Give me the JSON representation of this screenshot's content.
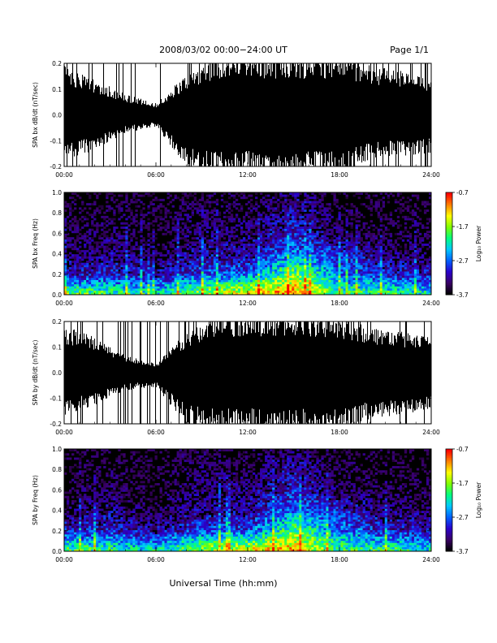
{
  "header": {
    "title": "2008/03/02  00:00−24:00 UT",
    "page": "Page 1/1"
  },
  "footer": {
    "xlabel": "Universal Time (hh:mm)"
  },
  "colorbar": {
    "label": "Log₁₀ Power",
    "ticks": [
      "-0.7",
      "-1.7",
      "-2.7",
      "-3.7"
    ],
    "range": [
      -3.7,
      -0.7
    ],
    "colors": [
      "#000000",
      "#3a0066",
      "#2a00cc",
      "#0060ff",
      "#00c8ff",
      "#00ff80",
      "#80ff00",
      "#ffff00",
      "#ff8000",
      "#ff0000"
    ]
  },
  "chart_data": [
    {
      "type": "line",
      "title": "",
      "ylabel": "SPA bx dB/dt (nT/sec)",
      "xlabel": "",
      "xlim": [
        "00:00",
        "24:00"
      ],
      "ylim": [
        -0.2,
        0.2
      ],
      "x_ticks": [
        "00:00",
        "06:00",
        "12:00",
        "18:00",
        "24:00"
      ],
      "y_ticks": [
        "-0.2",
        "-0.1",
        "0.0",
        "0.1",
        "0.2"
      ],
      "series": [
        {
          "x": [
            "00:00",
            "02:00",
            "04:00",
            "06:00",
            "08:00",
            "10:00",
            "12:00",
            "14:00",
            "16:00",
            "18:00",
            "20:00",
            "22:00",
            "24:00"
          ],
          "upper_envelope": [
            0.17,
            0.12,
            0.07,
            0.04,
            0.14,
            0.2,
            0.2,
            0.2,
            0.2,
            0.2,
            0.17,
            0.15,
            0.12
          ],
          "lower_envelope": [
            -0.15,
            -0.12,
            -0.06,
            -0.04,
            -0.18,
            -0.2,
            -0.2,
            -0.2,
            -0.2,
            -0.2,
            -0.15,
            -0.14,
            -0.13
          ]
        }
      ]
    },
    {
      "type": "heatmap",
      "title": "",
      "ylabel": "SPA bx Freq (Hz)",
      "xlabel": "",
      "xlim": [
        "00:00",
        "24:00"
      ],
      "ylim": [
        0.0,
        1.0
      ],
      "x_ticks": [
        "00:00",
        "06:00",
        "12:00",
        "18:00",
        "24:00"
      ],
      "y_ticks": [
        "0.0",
        "0.2",
        "0.4",
        "0.6",
        "0.8",
        "1.0"
      ],
      "color_scale": "Log₁₀ Power",
      "zlim": [
        -3.7,
        -0.7
      ],
      "x": [
        "00:00",
        "03:00",
        "06:00",
        "09:00",
        "12:00",
        "15:00",
        "18:00",
        "21:00",
        "24:00"
      ],
      "y": [
        0.0,
        0.2,
        0.4,
        0.6,
        0.8,
        1.0
      ],
      "z": [
        [
          -1.7,
          -1.9,
          -2.2,
          -1.6,
          -1.2,
          -1.0,
          -2.0,
          -1.9,
          -2.2
        ],
        [
          -3.1,
          -3.0,
          -3.2,
          -2.8,
          -2.7,
          -1.8,
          -2.6,
          -3.0,
          -3.1
        ],
        [
          -3.5,
          -3.3,
          -3.6,
          -3.2,
          -3.3,
          -2.6,
          -3.0,
          -3.4,
          -3.5
        ],
        [
          -3.6,
          -3.5,
          -3.7,
          -3.4,
          -3.4,
          -3.0,
          -3.5,
          -3.6,
          -3.6
        ],
        [
          -3.7,
          -3.6,
          -3.7,
          -3.5,
          -3.6,
          -3.2,
          -3.6,
          -3.7,
          -3.7
        ],
        [
          -3.7,
          -3.7,
          -3.7,
          -3.6,
          -3.7,
          -3.4,
          -3.7,
          -3.7,
          -3.7
        ]
      ]
    },
    {
      "type": "line",
      "title": "",
      "ylabel": "SPA by dB/dt (nT/sec)",
      "xlabel": "",
      "xlim": [
        "00:00",
        "24:00"
      ],
      "ylim": [
        -0.2,
        0.2
      ],
      "x_ticks": [
        "00:00",
        "06:00",
        "12:00",
        "18:00",
        "24:00"
      ],
      "y_ticks": [
        "-0.2",
        "-0.1",
        "0.0",
        "0.1",
        "0.2"
      ],
      "series": [
        {
          "x": [
            "00:00",
            "02:00",
            "04:00",
            "06:00",
            "08:00",
            "10:00",
            "12:00",
            "14:00",
            "16:00",
            "18:00",
            "20:00",
            "22:00",
            "24:00"
          ],
          "upper_envelope": [
            0.16,
            0.12,
            0.06,
            0.03,
            0.14,
            0.2,
            0.2,
            0.2,
            0.2,
            0.19,
            0.16,
            0.14,
            0.12
          ],
          "lower_envelope": [
            -0.15,
            -0.11,
            -0.06,
            -0.05,
            -0.18,
            -0.2,
            -0.2,
            -0.2,
            -0.2,
            -0.2,
            -0.16,
            -0.14,
            -0.13
          ]
        }
      ]
    },
    {
      "type": "heatmap",
      "title": "",
      "ylabel": "SPA by Freq (Hz)",
      "xlabel": "Universal Time (hh:mm)",
      "xlim": [
        "00:00",
        "24:00"
      ],
      "ylim": [
        0.0,
        1.0
      ],
      "x_ticks": [
        "00:00",
        "06:00",
        "12:00",
        "18:00",
        "24:00"
      ],
      "y_ticks": [
        "0.0",
        "0.2",
        "0.4",
        "0.6",
        "0.8",
        "1.0"
      ],
      "color_scale": "Log₁₀ Power",
      "zlim": [
        -3.7,
        -0.7
      ],
      "x": [
        "00:00",
        "03:00",
        "06:00",
        "09:00",
        "12:00",
        "15:00",
        "18:00",
        "21:00",
        "24:00"
      ],
      "y": [
        0.0,
        0.2,
        0.4,
        0.6,
        0.8,
        1.0
      ],
      "z": [
        [
          -1.8,
          -2.0,
          -2.2,
          -1.6,
          -1.3,
          -1.1,
          -2.0,
          -1.9,
          -2.2
        ],
        [
          -3.0,
          -3.0,
          -3.2,
          -2.8,
          -2.8,
          -1.9,
          -2.6,
          -3.0,
          -3.1
        ],
        [
          -3.5,
          -3.3,
          -3.6,
          -3.3,
          -3.3,
          -2.6,
          -3.0,
          -3.4,
          -3.5
        ],
        [
          -3.6,
          -3.5,
          -3.7,
          -3.4,
          -3.4,
          -3.0,
          -3.5,
          -3.6,
          -3.6
        ],
        [
          -3.7,
          -3.6,
          -3.7,
          -3.5,
          -3.6,
          -3.2,
          -3.6,
          -3.7,
          -3.7
        ],
        [
          -3.7,
          -3.7,
          -3.7,
          -3.6,
          -3.7,
          -3.4,
          -3.7,
          -3.7,
          -3.7
        ]
      ]
    }
  ]
}
